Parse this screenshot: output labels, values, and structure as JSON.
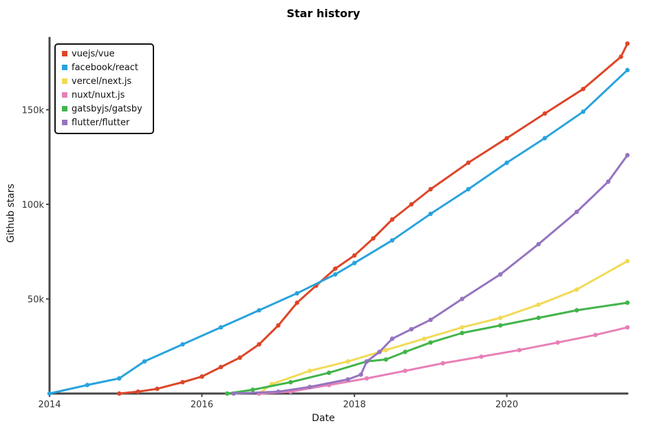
{
  "chart_data": {
    "type": "line",
    "title": "Star history",
    "xlabel": "Date",
    "ylabel": "Github stars",
    "xlim": [
      "2014-01-01",
      "2021-08-01"
    ],
    "ylim": [
      0,
      188000
    ],
    "x_ticks": [
      {
        "date": "2014-01-01",
        "label": "2014"
      },
      {
        "date": "2016-01-01",
        "label": "2016"
      },
      {
        "date": "2018-01-01",
        "label": "2018"
      },
      {
        "date": "2020-01-01",
        "label": "2020"
      }
    ],
    "y_ticks": [
      {
        "value": 50000,
        "label": "50k"
      },
      {
        "value": 100000,
        "label": "100k"
      },
      {
        "value": 150000,
        "label": "150k"
      }
    ],
    "legend_position": "top-left",
    "grid": false,
    "series": [
      {
        "name": "vuejs/vue",
        "color": "#dd4528",
        "points": [
          [
            "2014-12-01",
            0
          ],
          [
            "2015-03-01",
            1000
          ],
          [
            "2015-06-01",
            2500
          ],
          [
            "2015-10-01",
            6000
          ],
          [
            "2016-01-01",
            9000
          ],
          [
            "2016-04-01",
            14000
          ],
          [
            "2016-07-01",
            19000
          ],
          [
            "2016-10-01",
            26000
          ],
          [
            "2017-01-01",
            36000
          ],
          [
            "2017-04-01",
            48000
          ],
          [
            "2017-07-01",
            57000
          ],
          [
            "2017-10-01",
            66000
          ],
          [
            "2018-01-01",
            73000
          ],
          [
            "2018-04-01",
            82000
          ],
          [
            "2018-07-01",
            92000
          ],
          [
            "2018-10-01",
            100000
          ],
          [
            "2019-01-01",
            108000
          ],
          [
            "2019-07-01",
            122000
          ],
          [
            "2020-01-01",
            135000
          ],
          [
            "2020-07-01",
            148000
          ],
          [
            "2021-01-01",
            161000
          ],
          [
            "2021-07-01",
            178000
          ],
          [
            "2021-08-01",
            185000
          ]
        ]
      },
      {
        "name": "facebook/react",
        "color": "#28a3dd",
        "points": [
          [
            "2014-01-01",
            0
          ],
          [
            "2014-07-01",
            4500
          ],
          [
            "2014-12-01",
            8000
          ],
          [
            "2015-04-01",
            17000
          ],
          [
            "2015-10-01",
            26000
          ],
          [
            "2016-04-01",
            35000
          ],
          [
            "2016-10-01",
            44000
          ],
          [
            "2017-04-01",
            53000
          ],
          [
            "2017-10-01",
            63000
          ],
          [
            "2018-01-01",
            69000
          ],
          [
            "2018-07-01",
            81000
          ],
          [
            "2019-01-01",
            95000
          ],
          [
            "2019-07-01",
            108000
          ],
          [
            "2020-01-01",
            122000
          ],
          [
            "2020-07-01",
            135000
          ],
          [
            "2021-01-01",
            149000
          ],
          [
            "2021-08-01",
            171000
          ]
        ]
      },
      {
        "name": "vercel/next.js",
        "color": "#f2da57",
        "points": [
          [
            "2016-10-01",
            0
          ],
          [
            "2016-12-01",
            5000
          ],
          [
            "2017-06-01",
            12000
          ],
          [
            "2017-12-01",
            17000
          ],
          [
            "2018-06-01",
            23000
          ],
          [
            "2018-12-01",
            29000
          ],
          [
            "2019-06-01",
            35000
          ],
          [
            "2019-12-01",
            40000
          ],
          [
            "2020-06-01",
            47000
          ],
          [
            "2020-12-01",
            55000
          ],
          [
            "2021-08-01",
            70000
          ]
        ]
      },
      {
        "name": "nuxt/nuxt.js",
        "color": "#e780b8",
        "points": [
          [
            "2016-10-01",
            0
          ],
          [
            "2017-03-01",
            1000
          ],
          [
            "2017-09-01",
            4500
          ],
          [
            "2018-03-01",
            8000
          ],
          [
            "2018-09-01",
            12000
          ],
          [
            "2019-03-01",
            16000
          ],
          [
            "2019-09-01",
            19500
          ],
          [
            "2020-03-01",
            23000
          ],
          [
            "2020-09-01",
            27000
          ],
          [
            "2021-03-01",
            31000
          ],
          [
            "2021-08-01",
            35000
          ]
        ]
      },
      {
        "name": "gatsbyjs/gatsby",
        "color": "#42b44a",
        "points": [
          [
            "2016-05-01",
            0
          ],
          [
            "2016-09-01",
            2000
          ],
          [
            "2017-03-01",
            6000
          ],
          [
            "2017-09-01",
            11000
          ],
          [
            "2018-03-01",
            17000
          ],
          [
            "2018-06-01",
            18000
          ],
          [
            "2018-09-01",
            22000
          ],
          [
            "2019-01-01",
            27000
          ],
          [
            "2019-06-01",
            32000
          ],
          [
            "2019-12-01",
            36000
          ],
          [
            "2020-06-01",
            40000
          ],
          [
            "2020-12-01",
            44000
          ],
          [
            "2021-08-01",
            48000
          ]
        ]
      },
      {
        "name": "flutter/flutter",
        "color": "#9574c0",
        "points": [
          [
            "2016-06-01",
            0
          ],
          [
            "2017-01-01",
            1000
          ],
          [
            "2017-06-01",
            3500
          ],
          [
            "2017-12-01",
            7500
          ],
          [
            "2018-02-01",
            10000
          ],
          [
            "2018-03-01",
            17000
          ],
          [
            "2018-05-01",
            22000
          ],
          [
            "2018-07-01",
            29000
          ],
          [
            "2018-10-01",
            34000
          ],
          [
            "2019-01-01",
            39000
          ],
          [
            "2019-06-01",
            50000
          ],
          [
            "2019-12-01",
            63000
          ],
          [
            "2020-06-01",
            79000
          ],
          [
            "2020-12-01",
            96000
          ],
          [
            "2021-05-01",
            112000
          ],
          [
            "2021-08-01",
            126000
          ]
        ]
      }
    ]
  }
}
